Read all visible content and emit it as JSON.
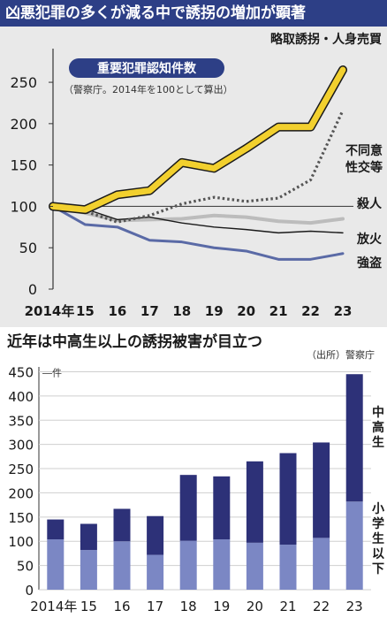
{
  "banner_title": "凶悪犯罪の多くが減る中で誘拐の増加が顕著",
  "chart_data": [
    {
      "type": "line",
      "title": "重要犯罪認知件数",
      "subtitle": "（警察庁。2014年を100として算出）",
      "categories": [
        "2014年",
        "15",
        "16",
        "17",
        "18",
        "19",
        "20",
        "21",
        "22",
        "23"
      ],
      "ylim": [
        0,
        280
      ],
      "yticks": [
        "0",
        "50",
        "100",
        "150",
        "200",
        "250"
      ],
      "series": [
        {
          "name": "略取誘拐・人身売買",
          "color": "#f2d02e",
          "style": "solid-bold",
          "values": [
            100,
            96,
            114,
            119,
            153,
            146,
            170,
            196,
            196,
            265
          ]
        },
        {
          "name": "不同意性交等",
          "color": "#555555",
          "style": "dotted",
          "values": [
            100,
            94,
            81,
            89,
            103,
            111,
            106,
            110,
            132,
            216
          ]
        },
        {
          "name": "殺人",
          "color": "#bcbcbc",
          "style": "solid-thick",
          "values": [
            100,
            92,
            83,
            84,
            85,
            89,
            87,
            82,
            80,
            85
          ]
        },
        {
          "name": "放火",
          "color": "#1a1a1a",
          "style": "solid-thin",
          "values": [
            100,
            97,
            84,
            87,
            80,
            75,
            72,
            68,
            70,
            68
          ]
        },
        {
          "name": "強盗",
          "color": "#5a6aa6",
          "style": "solid",
          "values": [
            100,
            78,
            75,
            59,
            57,
            50,
            46,
            36,
            36,
            43
          ]
        }
      ]
    },
    {
      "type": "bar",
      "title": "近年は中高生以上の誘拐被害が目立つ",
      "source": "（出所）警察庁",
      "unit": "件",
      "categories": [
        "2014年",
        "15",
        "16",
        "17",
        "18",
        "19",
        "20",
        "21",
        "22",
        "23"
      ],
      "ylim": [
        0,
        460
      ],
      "yticks": [
        "0",
        "50",
        "100",
        "150",
        "200",
        "250",
        "300",
        "350",
        "400",
        "450"
      ],
      "series": [
        {
          "name": "小学生以下",
          "color": "#7b87c4",
          "values": [
            104,
            82,
            100,
            72,
            101,
            104,
            97,
            93,
            107,
            182
          ]
        },
        {
          "name": "中高生",
          "color": "#2d3178",
          "values": [
            41,
            54,
            67,
            80,
            136,
            130,
            168,
            189,
            197,
            263
          ]
        }
      ]
    }
  ]
}
